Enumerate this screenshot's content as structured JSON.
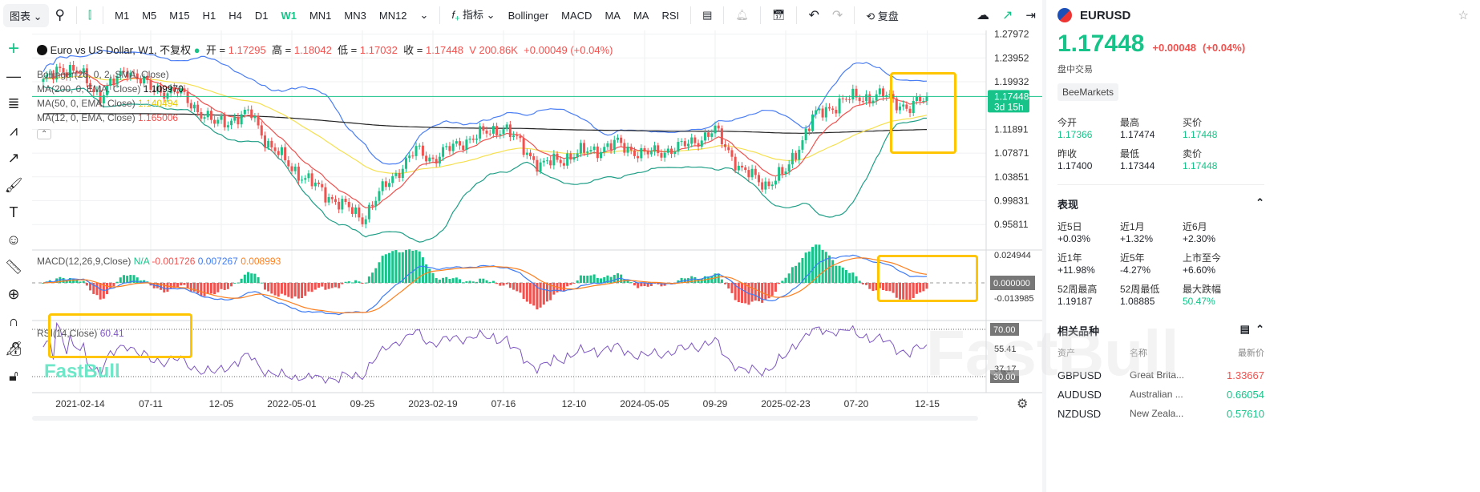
{
  "toolbar": {
    "chart_menu": "图表",
    "timeframes": [
      "M1",
      "M5",
      "M15",
      "H1",
      "H4",
      "D1",
      "W1",
      "MN1",
      "MN3",
      "MN12"
    ],
    "active_timeframe": "W1",
    "indicators_label": "指标",
    "indicator_shortcuts": [
      "Bollinger",
      "MACD",
      "MA",
      "MA",
      "RSI"
    ],
    "replay_label": "复盘"
  },
  "legend": {
    "title": "Euro vs US Dollar, W1, 不复权",
    "open_label": "开 =",
    "open": "1.17295",
    "high_label": "高 =",
    "high": "1.18042",
    "low_label": "低 =",
    "low": "1.17032",
    "close_label": "收 =",
    "close": "1.17448",
    "volume": "V 200.86K",
    "change": "+0.00049 (+0.04%)",
    "bollinger": "Bollinger(26, 0, 2, SMA, Close)",
    "ma200": "MA(200, 0, EMA, Close)",
    "ma200_value": "1.109970",
    "ma50": "MA(50, 0, EMA, Close)",
    "ma50_value": "1.140494",
    "ma12": "MA(12, 0, EMA, Close)",
    "ma12_value": "1.165006",
    "macd": "MACD(12,26,9,Close)",
    "macd_na": "N/A",
    "macd_hist": "-0.001726",
    "macd_line": "0.007267",
    "macd_signal": "0.008993",
    "rsi": "RSI(14,Close)",
    "rsi_value": "60.41"
  },
  "price_axis": {
    "ticks": [
      "1.27972",
      "1.23952",
      "1.19932",
      "1.11891",
      "1.07871",
      "1.03851",
      "0.99831",
      "0.95811"
    ],
    "current": "1.17448",
    "countdown": "3d 15h"
  },
  "macd_axis": {
    "ticks": [
      "0.024944",
      "-0.013985"
    ],
    "zero": "0.000000"
  },
  "rsi_axis": {
    "upper": "70.00",
    "lower": "30.00",
    "ticks": [
      "55.41",
      "37.17"
    ]
  },
  "date_axis": [
    "2021-02-14",
    "07-11",
    "12-05",
    "2022-05-01",
    "09-25",
    "2023-02-19",
    "07-16",
    "12-10",
    "2024-05-05",
    "09-29",
    "2025-02-23",
    "07-20",
    "12-15"
  ],
  "watermark": "FastBull",
  "colors": {
    "up": "#18c38a",
    "down": "#f0524f",
    "bb_upper": "#4a7ef5",
    "bb_lower": "#1e9e86",
    "ma200": "#222222",
    "ma50": "#f5e050",
    "ma12": "#f0524f",
    "macd": "#3d7bf5",
    "signal": "#ff7f1e",
    "rsi": "#7e57c2",
    "highlight": "#ffc600"
  },
  "chart_data": {
    "type": "candlestick",
    "symbol": "EURUSD",
    "timeframe": "W1",
    "close_anchors": [
      [
        "2020-11-29",
        1.195
      ],
      [
        "2021-01-03",
        1.225
      ],
      [
        "2021-02-14",
        1.212
      ],
      [
        "2021-03-28",
        1.175
      ],
      [
        "2021-05-23",
        1.222
      ],
      [
        "2021-07-11",
        1.187
      ],
      [
        "2021-09-05",
        1.182
      ],
      [
        "2021-11-21",
        1.128
      ],
      [
        "2021-12-05",
        1.131
      ],
      [
        "2022-02-06",
        1.145
      ],
      [
        "2022-03-13",
        1.094
      ],
      [
        "2022-05-01",
        1.054
      ],
      [
        "2022-07-10",
        1.01
      ],
      [
        "2022-09-25",
        0.969
      ],
      [
        "2022-11-20",
        1.032
      ],
      [
        "2023-01-15",
        1.083
      ],
      [
        "2023-02-19",
        1.069
      ],
      [
        "2023-04-23",
        1.099
      ],
      [
        "2023-07-16",
        1.123
      ],
      [
        "2023-10-01",
        1.057
      ],
      [
        "2023-12-10",
        1.076
      ],
      [
        "2024-03-10",
        1.094
      ],
      [
        "2024-05-05",
        1.076
      ],
      [
        "2024-07-21",
        1.089
      ],
      [
        "2024-09-29",
        1.116
      ],
      [
        "2024-11-24",
        1.049
      ],
      [
        "2025-01-12",
        1.026
      ],
      [
        "2025-02-23",
        1.046
      ],
      [
        "2025-04-20",
        1.138
      ],
      [
        "2025-06-22",
        1.168
      ],
      [
        "2025-07-20",
        1.172
      ],
      [
        "2025-09-14",
        1.176
      ],
      [
        "2025-11-09",
        1.154
      ],
      [
        "2025-12-15",
        1.17448
      ]
    ],
    "ylim": [
      0.94,
      1.285
    ]
  },
  "side": {
    "symbol": "EURUSD",
    "price": "1.17448",
    "change": "+0.00048",
    "change_pct": "(+0.04%)",
    "status": "盘中交易",
    "broker": "BeeMarkets",
    "quote": [
      {
        "label": "今开",
        "value": "1.17366",
        "tone": "g"
      },
      {
        "label": "最高",
        "value": "1.17474",
        "tone": ""
      },
      {
        "label": "买价",
        "value": "1.17448",
        "tone": "g"
      },
      {
        "label": "昨收",
        "value": "1.17400",
        "tone": ""
      },
      {
        "label": "最低",
        "value": "1.17344",
        "tone": ""
      },
      {
        "label": "卖价",
        "value": "1.17448",
        "tone": "g"
      }
    ],
    "performance_title": "表现",
    "performance": [
      {
        "label": "近5日",
        "value": "+0.03%",
        "tone": ""
      },
      {
        "label": "近1月",
        "value": "+1.32%",
        "tone": ""
      },
      {
        "label": "近6月",
        "value": "+2.30%",
        "tone": ""
      },
      {
        "label": "近1年",
        "value": "+11.98%",
        "tone": ""
      },
      {
        "label": "近5年",
        "value": "-4.27%",
        "tone": ""
      },
      {
        "label": "上市至今",
        "value": "+6.60%",
        "tone": ""
      },
      {
        "label": "52周最高",
        "value": "1.19187",
        "tone": ""
      },
      {
        "label": "52周最低",
        "value": "1.08885",
        "tone": ""
      },
      {
        "label": "最大跌幅",
        "value": "50.47%",
        "tone": "g"
      }
    ],
    "related_title": "相关品种",
    "related_headers": [
      "资产",
      "名称",
      "最新价"
    ],
    "related": [
      {
        "asset": "GBPUSD",
        "name": "Great Brita...",
        "price": "1.33667",
        "tone": "r"
      },
      {
        "asset": "AUDUSD",
        "name": "Australian ...",
        "price": "0.66054",
        "tone": "g"
      },
      {
        "asset": "NZDUSD",
        "name": "New Zeala...",
        "price": "0.57610",
        "tone": "g"
      }
    ]
  }
}
